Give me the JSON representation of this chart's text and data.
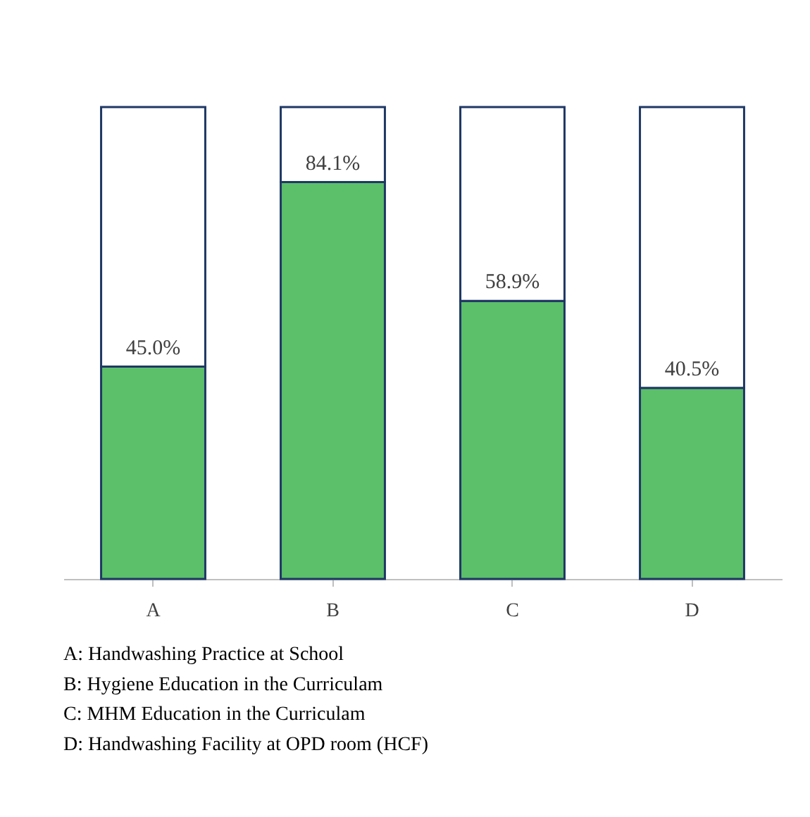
{
  "chart_data": {
    "type": "bar",
    "stacked": true,
    "categories": [
      "A",
      "B",
      "C",
      "D"
    ],
    "series": [
      {
        "color": "#5cbf6a",
        "values": [
          45.0,
          84.1,
          58.9,
          40.5
        ],
        "value_labels": [
          "45.0%",
          "84.1%",
          "58.9%",
          "40.5%"
        ]
      },
      {
        "color": "#ffffff",
        "values": [
          55.0,
          15.9,
          41.1,
          59.5
        ]
      }
    ],
    "ylim": [
      0,
      100
    ],
    "tick_labels": "x",
    "annotations": [
      "A: Handwashing Practice at School",
      "B: Hygiene Education in the Curriculam",
      "C: MHM  Education in the Curriculam",
      "D: Handwashing Facility at OPD room (HCF)"
    ]
  }
}
